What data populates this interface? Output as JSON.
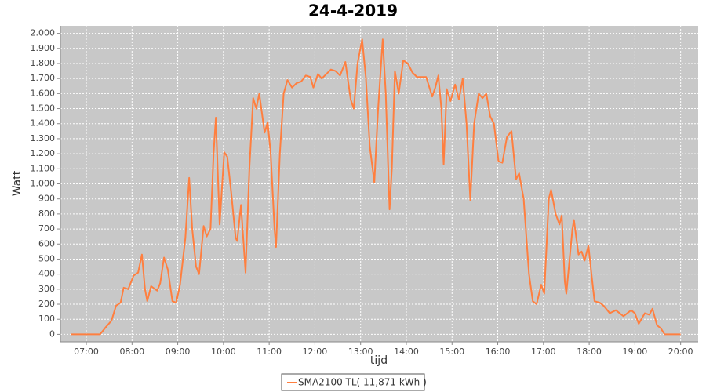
{
  "chart_data": {
    "type": "line",
    "title": "24-4-2019",
    "x_label": "tijd",
    "y_label": "Watt",
    "x": [
      "06:40",
      "07:18",
      "07:26",
      "07:33",
      "07:39",
      "07:45",
      "07:49",
      "07:55",
      "08:02",
      "08:08",
      "08:13",
      "08:17",
      "08:20",
      "08:25",
      "08:33",
      "08:37",
      "08:42",
      "08:47",
      "08:53",
      "08:58",
      "09:03",
      "09:10",
      "09:15",
      "09:19",
      "09:24",
      "09:28",
      "09:34",
      "09:38",
      "09:43",
      "09:47",
      "09:50",
      "09:55",
      "10:01",
      "10:05",
      "10:10",
      "10:16",
      "10:18",
      "10:23",
      "10:29",
      "10:34",
      "10:39",
      "10:43",
      "10:47",
      "10:54",
      "10:58",
      "11:02",
      "11:07",
      "11:09",
      "11:14",
      "11:19",
      "11:24",
      "11:30",
      "11:36",
      "11:42",
      "11:48",
      "11:54",
      "11:58",
      "12:04",
      "12:09",
      "12:15",
      "12:21",
      "12:27",
      "12:33",
      "12:40",
      "12:47",
      "12:51",
      "12:56",
      "13:02",
      "13:07",
      "13:12",
      "13:18",
      "13:23",
      "13:29",
      "13:33",
      "13:38",
      "13:41",
      "13:45",
      "13:50",
      "13:56",
      "14:02",
      "14:08",
      "14:14",
      "14:20",
      "14:26",
      "14:34",
      "14:38",
      "14:42",
      "14:46",
      "14:49",
      "14:53",
      "14:58",
      "15:04",
      "15:09",
      "15:14",
      "15:19",
      "15:24",
      "15:29",
      "15:35",
      "15:40",
      "15:45",
      "15:50",
      "15:55",
      "16:01",
      "16:06",
      "16:12",
      "16:18",
      "16:24",
      "16:28",
      "16:34",
      "16:41",
      "16:46",
      "16:51",
      "16:57",
      "17:01",
      "17:07",
      "17:10",
      "17:16",
      "17:21",
      "17:24",
      "17:28",
      "17:30",
      "17:38",
      "17:40",
      "17:46",
      "17:50",
      "17:54",
      "17:59",
      "18:03",
      "18:07",
      "18:14",
      "18:19",
      "18:27",
      "18:35",
      "18:45",
      "18:55",
      "19:00",
      "19:05",
      "19:13",
      "19:19",
      "19:23",
      "19:29",
      "19:34",
      "19:39",
      "20:00"
    ],
    "series": [
      {
        "name": "SMA2100 TL( 11,871 kWh )",
        "color": "#ff7f3f",
        "values": [
          0,
          0,
          50,
          90,
          190,
          210,
          310,
          300,
          390,
          410,
          530,
          300,
          220,
          320,
          290,
          340,
          510,
          430,
          220,
          210,
          330,
          640,
          1040,
          700,
          450,
          400,
          720,
          650,
          700,
          1200,
          1440,
          730,
          1210,
          1180,
          950,
          640,
          620,
          860,
          410,
          1100,
          1570,
          1500,
          1600,
          1340,
          1410,
          1200,
          700,
          580,
          1200,
          1600,
          1690,
          1640,
          1670,
          1680,
          1720,
          1710,
          1640,
          1730,
          1700,
          1730,
          1760,
          1750,
          1720,
          1810,
          1560,
          1500,
          1800,
          1960,
          1700,
          1250,
          1010,
          1500,
          1960,
          1600,
          830,
          1100,
          1750,
          1600,
          1820,
          1800,
          1740,
          1710,
          1710,
          1710,
          1580,
          1640,
          1720,
          1500,
          1130,
          1630,
          1550,
          1660,
          1560,
          1700,
          1400,
          890,
          1400,
          1600,
          1570,
          1600,
          1450,
          1400,
          1150,
          1140,
          1310,
          1350,
          1030,
          1070,
          900,
          400,
          220,
          200,
          330,
          270,
          900,
          960,
          800,
          730,
          790,
          350,
          270,
          700,
          760,
          530,
          550,
          490,
          590,
          400,
          220,
          210,
          190,
          140,
          160,
          120,
          160,
          140,
          70,
          140,
          130,
          170,
          60,
          40,
          0,
          0
        ]
      }
    ],
    "xlim": [
      "06:26",
      "20:23"
    ],
    "xticks": [
      "07:00",
      "08:00",
      "09:00",
      "10:00",
      "11:00",
      "12:00",
      "13:00",
      "14:00",
      "15:00",
      "16:00",
      "17:00",
      "18:00",
      "19:00",
      "20:00"
    ],
    "ylim": [
      -50,
      2050
    ],
    "yticks": [
      0,
      100,
      200,
      300,
      400,
      500,
      600,
      700,
      800,
      900,
      {
        "value": 1000,
        "label": "1.000"
      },
      {
        "value": 1100,
        "label": "1.100"
      },
      {
        "value": 1200,
        "label": "1.200"
      },
      {
        "value": 1300,
        "label": "1.300"
      },
      {
        "value": 1400,
        "label": "1.400"
      },
      {
        "value": 1500,
        "label": "1.500"
      },
      {
        "value": 1600,
        "label": "1.600"
      },
      {
        "value": 1700,
        "label": "1.700"
      },
      {
        "value": 1800,
        "label": "1.800"
      },
      {
        "value": 1900,
        "label": "1.900"
      },
      {
        "value": 2000,
        "label": "2.000"
      }
    ],
    "grid": true,
    "legend": "bottom"
  }
}
